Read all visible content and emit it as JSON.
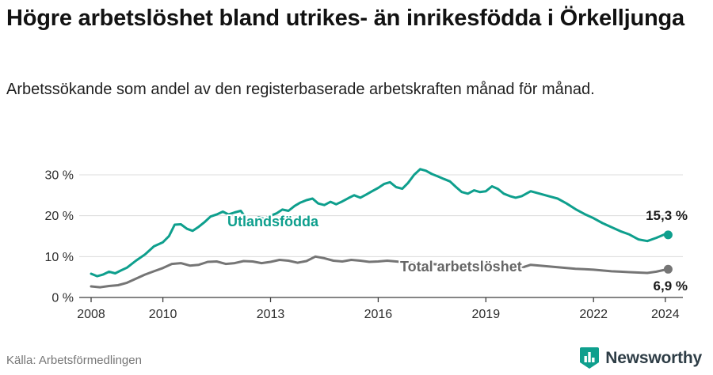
{
  "brand": {
    "name": "Newsworthy",
    "icon_color": "#0e9f8d",
    "text_color": "#2e3d46"
  },
  "chart_data": {
    "type": "line",
    "title": "Högre arbetslöshet bland utrikes- än inrikesfödda i Örkelljunga",
    "subtitle": "Arbetssökande som andel av den registerbaserade arbetskraften månad för månad.",
    "source": "Källa: Arbetsförmedlingen",
    "unit": "%",
    "ylim": [
      0,
      33
    ],
    "xlim": [
      2007.8,
      2024.5
    ],
    "grid": true,
    "legend_position": "inline",
    "yticks": [
      {
        "v": 30,
        "label": "30 %"
      },
      {
        "v": 20,
        "label": "20 %"
      },
      {
        "v": 10,
        "label": "10 %"
      },
      {
        "v": 0,
        "label": "0 %"
      }
    ],
    "xticks": [
      {
        "v": 2008,
        "label": "2008"
      },
      {
        "v": 2010,
        "label": "2010"
      },
      {
        "v": 2013,
        "label": "2013"
      },
      {
        "v": 2016,
        "label": "2016"
      },
      {
        "v": 2019,
        "label": "2019"
      },
      {
        "v": 2022,
        "label": "2022"
      },
      {
        "v": 2024,
        "label": "2024"
      }
    ],
    "series": [
      {
        "name": "Utlandsfödda",
        "color": "#0e9f8d",
        "label_color": "#0e9f8d",
        "end_label": "15,3 %",
        "last_value": 15.3,
        "points": [
          [
            2008.0,
            5.8
          ],
          [
            2008.17,
            5.2
          ],
          [
            2008.33,
            5.6
          ],
          [
            2008.5,
            6.3
          ],
          [
            2008.67,
            5.9
          ],
          [
            2008.83,
            6.6
          ],
          [
            2009.0,
            7.3
          ],
          [
            2009.25,
            9.0
          ],
          [
            2009.5,
            10.5
          ],
          [
            2009.75,
            12.5
          ],
          [
            2010.0,
            13.5
          ],
          [
            2010.17,
            15.0
          ],
          [
            2010.33,
            17.8
          ],
          [
            2010.5,
            17.9
          ],
          [
            2010.67,
            16.8
          ],
          [
            2010.83,
            16.3
          ],
          [
            2011.0,
            17.3
          ],
          [
            2011.17,
            18.5
          ],
          [
            2011.33,
            19.8
          ],
          [
            2011.5,
            20.3
          ],
          [
            2011.67,
            21.0
          ],
          [
            2011.83,
            20.3
          ],
          [
            2012.0,
            20.8
          ],
          [
            2012.17,
            21.2
          ],
          [
            2012.33,
            19.3
          ],
          [
            2012.5,
            19.0
          ],
          [
            2012.67,
            19.6
          ],
          [
            2012.83,
            19.2
          ],
          [
            2013.0,
            20.0
          ],
          [
            2013.17,
            20.6
          ],
          [
            2013.33,
            21.5
          ],
          [
            2013.5,
            21.2
          ],
          [
            2013.67,
            22.4
          ],
          [
            2013.83,
            23.2
          ],
          [
            2014.0,
            23.8
          ],
          [
            2014.17,
            24.2
          ],
          [
            2014.33,
            23.0
          ],
          [
            2014.5,
            22.6
          ],
          [
            2014.67,
            23.4
          ],
          [
            2014.83,
            22.8
          ],
          [
            2015.0,
            23.5
          ],
          [
            2015.17,
            24.3
          ],
          [
            2015.33,
            25.0
          ],
          [
            2015.5,
            24.4
          ],
          [
            2015.67,
            25.2
          ],
          [
            2015.83,
            26.0
          ],
          [
            2016.0,
            26.8
          ],
          [
            2016.17,
            27.8
          ],
          [
            2016.33,
            28.2
          ],
          [
            2016.5,
            27.0
          ],
          [
            2016.67,
            26.6
          ],
          [
            2016.83,
            28.0
          ],
          [
            2017.0,
            30.0
          ],
          [
            2017.17,
            31.4
          ],
          [
            2017.33,
            31.0
          ],
          [
            2017.5,
            30.2
          ],
          [
            2017.67,
            29.6
          ],
          [
            2017.83,
            29.0
          ],
          [
            2018.0,
            28.4
          ],
          [
            2018.17,
            27.0
          ],
          [
            2018.33,
            25.8
          ],
          [
            2018.5,
            25.4
          ],
          [
            2018.67,
            26.2
          ],
          [
            2018.83,
            25.8
          ],
          [
            2019.0,
            26.0
          ],
          [
            2019.17,
            27.2
          ],
          [
            2019.33,
            26.6
          ],
          [
            2019.5,
            25.4
          ],
          [
            2019.67,
            24.8
          ],
          [
            2019.83,
            24.4
          ],
          [
            2020.0,
            24.8
          ],
          [
            2020.25,
            26.0
          ],
          [
            2020.5,
            25.4
          ],
          [
            2020.75,
            24.8
          ],
          [
            2021.0,
            24.2
          ],
          [
            2021.25,
            23.0
          ],
          [
            2021.5,
            21.6
          ],
          [
            2021.75,
            20.4
          ],
          [
            2022.0,
            19.4
          ],
          [
            2022.25,
            18.2
          ],
          [
            2022.5,
            17.2
          ],
          [
            2022.75,
            16.2
          ],
          [
            2023.0,
            15.4
          ],
          [
            2023.25,
            14.2
          ],
          [
            2023.5,
            13.8
          ],
          [
            2023.75,
            14.6
          ],
          [
            2024.0,
            15.5
          ],
          [
            2024.08,
            15.3
          ]
        ]
      },
      {
        "name": "Total arbetslöshet",
        "color": "#757575",
        "label_color": "#666666",
        "end_label": "6,9 %",
        "last_value": 6.9,
        "points": [
          [
            2008.0,
            2.7
          ],
          [
            2008.25,
            2.5
          ],
          [
            2008.5,
            2.8
          ],
          [
            2008.75,
            3.0
          ],
          [
            2009.0,
            3.6
          ],
          [
            2009.25,
            4.6
          ],
          [
            2009.5,
            5.6
          ],
          [
            2009.75,
            6.4
          ],
          [
            2010.0,
            7.2
          ],
          [
            2010.25,
            8.2
          ],
          [
            2010.5,
            8.4
          ],
          [
            2010.75,
            7.8
          ],
          [
            2011.0,
            8.0
          ],
          [
            2011.25,
            8.7
          ],
          [
            2011.5,
            8.8
          ],
          [
            2011.75,
            8.2
          ],
          [
            2012.0,
            8.4
          ],
          [
            2012.25,
            8.9
          ],
          [
            2012.5,
            8.8
          ],
          [
            2012.75,
            8.4
          ],
          [
            2013.0,
            8.7
          ],
          [
            2013.25,
            9.2
          ],
          [
            2013.5,
            9.0
          ],
          [
            2013.75,
            8.5
          ],
          [
            2014.0,
            8.9
          ],
          [
            2014.25,
            10.0
          ],
          [
            2014.5,
            9.6
          ],
          [
            2014.75,
            9.0
          ],
          [
            2015.0,
            8.8
          ],
          [
            2015.25,
            9.2
          ],
          [
            2015.5,
            9.0
          ],
          [
            2015.75,
            8.7
          ],
          [
            2016.0,
            8.8
          ],
          [
            2016.25,
            9.0
          ],
          [
            2016.5,
            8.8
          ],
          [
            2016.75,
            8.6
          ],
          [
            2017.0,
            8.4
          ],
          [
            2017.25,
            8.3
          ],
          [
            2017.5,
            8.2
          ],
          [
            2017.75,
            8.0
          ],
          [
            2018.0,
            7.9
          ],
          [
            2018.25,
            7.8
          ],
          [
            2018.5,
            7.6
          ],
          [
            2018.75,
            7.5
          ],
          [
            2019.0,
            7.6
          ],
          [
            2019.25,
            7.5
          ],
          [
            2019.5,
            7.3
          ],
          [
            2019.75,
            7.2
          ],
          [
            2020.0,
            7.3
          ],
          [
            2020.25,
            8.0
          ],
          [
            2020.5,
            7.8
          ],
          [
            2020.75,
            7.6
          ],
          [
            2021.0,
            7.4
          ],
          [
            2021.25,
            7.2
          ],
          [
            2021.5,
            7.0
          ],
          [
            2021.75,
            6.9
          ],
          [
            2022.0,
            6.8
          ],
          [
            2022.25,
            6.6
          ],
          [
            2022.5,
            6.4
          ],
          [
            2022.75,
            6.3
          ],
          [
            2023.0,
            6.2
          ],
          [
            2023.25,
            6.1
          ],
          [
            2023.5,
            6.0
          ],
          [
            2023.75,
            6.3
          ],
          [
            2024.0,
            6.8
          ],
          [
            2024.08,
            6.9
          ]
        ]
      }
    ]
  }
}
